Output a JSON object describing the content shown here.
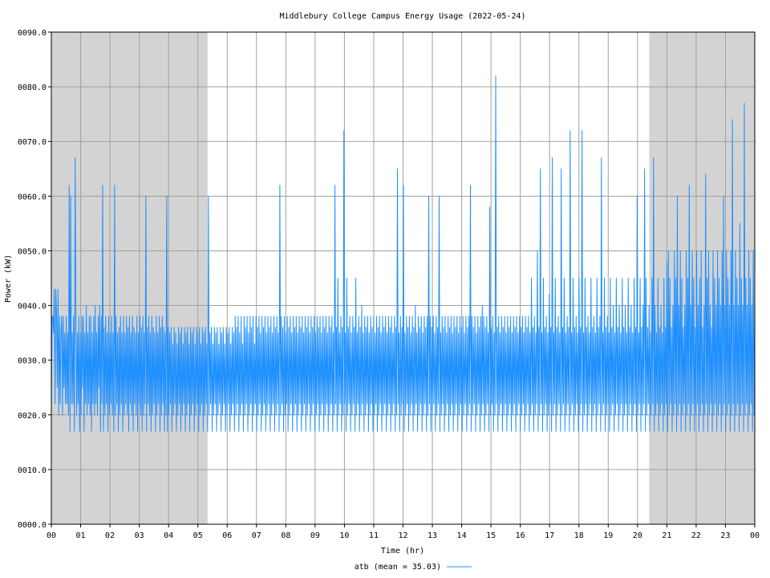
{
  "chart_data": {
    "type": "line",
    "title": "Middlebury College Campus Energy Usage (2022-05-24)",
    "xlabel": "Time (hr)",
    "ylabel": "Power (kW)",
    "xlim": [
      0,
      24
    ],
    "ylim": [
      0,
      90
    ],
    "x_ticks": [
      "00",
      "01",
      "02",
      "03",
      "04",
      "05",
      "06",
      "07",
      "08",
      "09",
      "10",
      "11",
      "12",
      "13",
      "14",
      "15",
      "16",
      "17",
      "18",
      "19",
      "20",
      "21",
      "22",
      "23",
      "00"
    ],
    "y_ticks": [
      "0000.0",
      "0010.0",
      "0020.0",
      "0030.0",
      "0040.0",
      "0050.0",
      "0060.0",
      "0070.0",
      "0080.0",
      "0090.0"
    ],
    "grid": true,
    "legend_position": "bottom-center",
    "shaded_ranges_hr": [
      [
        0,
        5.33
      ],
      [
        20.4,
        24
      ]
    ],
    "shade_color": "#d3d3d3",
    "series": [
      {
        "name": "atb (mean = 35.03)",
        "color": "#1e90ff",
        "sample_interval_min": 1,
        "values": [
          20,
          38,
          38,
          35,
          43,
          22,
          43,
          38,
          25,
          43,
          20,
          38,
          22,
          35,
          38,
          20,
          38,
          25,
          35,
          22,
          38,
          22,
          35,
          20,
          62,
          17,
          60,
          22,
          35,
          22,
          38,
          17,
          67,
          38,
          20,
          35,
          22,
          38,
          17,
          35,
          20,
          38,
          25,
          38,
          17,
          35,
          22,
          40,
          20,
          35,
          22,
          38,
          20,
          38,
          17,
          35,
          22,
          38,
          20,
          40,
          22,
          35,
          20,
          38,
          25,
          40,
          17,
          38,
          22,
          62,
          17,
          36,
          20,
          38,
          22,
          35,
          17,
          38,
          20,
          35,
          22,
          38,
          20,
          35,
          17,
          62,
          20,
          38,
          22,
          35,
          17,
          36,
          20,
          38,
          22,
          35,
          17,
          38,
          20,
          35,
          22,
          38,
          20,
          36,
          17,
          38,
          22,
          35,
          20,
          38,
          17,
          36,
          22,
          35,
          20,
          38,
          17,
          35,
          22,
          38,
          20,
          36,
          17,
          38,
          20,
          35,
          22,
          60,
          17,
          36,
          22,
          38,
          20,
          35,
          17,
          38,
          20,
          36,
          22,
          35,
          17,
          38,
          20,
          35,
          22,
          38,
          17,
          36,
          20,
          38,
          22,
          36,
          17,
          35,
          20,
          60,
          17,
          36,
          20,
          35,
          22,
          36,
          17,
          33,
          20,
          36,
          22,
          35,
          17,
          33,
          20,
          36,
          22,
          35,
          17,
          36,
          20,
          33,
          22,
          36,
          17,
          35,
          20,
          36,
          22,
          33,
          17,
          36,
          20,
          35,
          22,
          36,
          17,
          33,
          20,
          36,
          22,
          35,
          17,
          36,
          20,
          33,
          22,
          36,
          17,
          35,
          20,
          36,
          22,
          33,
          17,
          60,
          20,
          35,
          22,
          36,
          17,
          33,
          20,
          36,
          22,
          35,
          17,
          36,
          20,
          33,
          22,
          36,
          17,
          35,
          20,
          36,
          22,
          33,
          17,
          36,
          20,
          35,
          22,
          36,
          17,
          33,
          20,
          36,
          22,
          35,
          17,
          38,
          20,
          36,
          22,
          38,
          17,
          35,
          20,
          38,
          22,
          33,
          17,
          38,
          20,
          36,
          22,
          38,
          17,
          35,
          20,
          38,
          22,
          36,
          17,
          38,
          20,
          33,
          22,
          38,
          17,
          36,
          20,
          38,
          22,
          35,
          17,
          38,
          20,
          36,
          22,
          38,
          17,
          35,
          20,
          38,
          22,
          36,
          17,
          38,
          20,
          35,
          22,
          38,
          17,
          36,
          20,
          38,
          22,
          35,
          17,
          62,
          20,
          38,
          22,
          36,
          17,
          38,
          20,
          35,
          22,
          38,
          17,
          36,
          20,
          38,
          22,
          35,
          17,
          38,
          20,
          36,
          22,
          38,
          17,
          35,
          20,
          38,
          22,
          36,
          17,
          38,
          20,
          35,
          22,
          38,
          17,
          36,
          20,
          38,
          22,
          35,
          17,
          38,
          20,
          36,
          22,
          38,
          17,
          35,
          20,
          38,
          22,
          36,
          17,
          38,
          20,
          35,
          22,
          38,
          17,
          36,
          20,
          38,
          22,
          35,
          17,
          38,
          20,
          36,
          22,
          38,
          17,
          35,
          20,
          62,
          22,
          36,
          17,
          45,
          20,
          35,
          22,
          38,
          17,
          36,
          20,
          72,
          22,
          35,
          17,
          45,
          20,
          36,
          22,
          38,
          17,
          35,
          20,
          38,
          22,
          36,
          17,
          45,
          20,
          35,
          22,
          38,
          17,
          36,
          20,
          40,
          22,
          35,
          17,
          38,
          20,
          36,
          22,
          38,
          17,
          35,
          20,
          38,
          22,
          36,
          17,
          38,
          20,
          35,
          22,
          38,
          17,
          36,
          20,
          38,
          22,
          35,
          17,
          38,
          20,
          36,
          22,
          38,
          17,
          35,
          20,
          38,
          22,
          36,
          17,
          38,
          20,
          35,
          22,
          38,
          17,
          36,
          20,
          65,
          22,
          35,
          17,
          38,
          20,
          36,
          22,
          62,
          17,
          35,
          20,
          38,
          22,
          36,
          17,
          38,
          20,
          35,
          22,
          38,
          17,
          36,
          20,
          40,
          22,
          35,
          17,
          38,
          20,
          36,
          22,
          38,
          17,
          35,
          20,
          38,
          22,
          36,
          17,
          38,
          20,
          60,
          22,
          38,
          17,
          36,
          20,
          38,
          22,
          35,
          17,
          38,
          20,
          36,
          22,
          60,
          17,
          35,
          20,
          38,
          22,
          36,
          17,
          38,
          20,
          35,
          22,
          38,
          17,
          36,
          20,
          38,
          22,
          35,
          17,
          38,
          20,
          36,
          22,
          38,
          17,
          35,
          20,
          38,
          22,
          36,
          17,
          38,
          20,
          35,
          22,
          38,
          17,
          36,
          20,
          38,
          22,
          62,
          17,
          38,
          20,
          36,
          22,
          38,
          17,
          35,
          20,
          38,
          22,
          36,
          17,
          38,
          20,
          40,
          22,
          38,
          17,
          36,
          20,
          38,
          22,
          35,
          17,
          58,
          20,
          36,
          22,
          38,
          17,
          35,
          20,
          82,
          22,
          36,
          17,
          38,
          20,
          35,
          22,
          38,
          17,
          36,
          20,
          38,
          22,
          35,
          17,
          38,
          20,
          36,
          22,
          38,
          17,
          35,
          20,
          38,
          22,
          36,
          17,
          38,
          20,
          35,
          22,
          38,
          17,
          36,
          20,
          38,
          22,
          35,
          17,
          38,
          20,
          36,
          22,
          38,
          17,
          35,
          20,
          45,
          22,
          36,
          17,
          38,
          20,
          35,
          22,
          50,
          17,
          36,
          20,
          65,
          22,
          35,
          17,
          45,
          20,
          36,
          22,
          38,
          17,
          35,
          20,
          42,
          22,
          36,
          17,
          67,
          20,
          35,
          22,
          45,
          17,
          36,
          20,
          38,
          22,
          35,
          17,
          65,
          20,
          36,
          22,
          45,
          17,
          35,
          20,
          38,
          22,
          36,
          17,
          72,
          20,
          35,
          22,
          45,
          17,
          36,
          20,
          38,
          22,
          35,
          17,
          45,
          20,
          36,
          22,
          72,
          17,
          35,
          20,
          45,
          22,
          36,
          17,
          38,
          20,
          35,
          22,
          45,
          17,
          36,
          20,
          38,
          22,
          35,
          17,
          45,
          20,
          36,
          22,
          38,
          17,
          67,
          20,
          35,
          22,
          45,
          17,
          36,
          20,
          38,
          22,
          35,
          17,
          45,
          20,
          36,
          22,
          40,
          17,
          35,
          20,
          45,
          22,
          36,
          17,
          40,
          20,
          35,
          22,
          45,
          17,
          36,
          20,
          40,
          22,
          35,
          17,
          45,
          20,
          36,
          22,
          40,
          17,
          35,
          20,
          45,
          22,
          36,
          17,
          60,
          20,
          35,
          22,
          45,
          17,
          36,
          20,
          40,
          22,
          65,
          17,
          45,
          20,
          36,
          22,
          40,
          17,
          35,
          20,
          45,
          22,
          67,
          17,
          40,
          20,
          35,
          22,
          45,
          17,
          36,
          20,
          40,
          22,
          35,
          17,
          45,
          20,
          36,
          22,
          48,
          17,
          50,
          20,
          45,
          22,
          36,
          17,
          40,
          20,
          50,
          22,
          45,
          17,
          60,
          20,
          40,
          22,
          50,
          17,
          45,
          20,
          36,
          22,
          40,
          17,
          50,
          20,
          45,
          22,
          62,
          17,
          40,
          20,
          50,
          22,
          45,
          17,
          36,
          20,
          50,
          22,
          40,
          17,
          45,
          20,
          50,
          22,
          36,
          17,
          40,
          20,
          64,
          22,
          45,
          17,
          50,
          20,
          40,
          22,
          36,
          17,
          50,
          20,
          45,
          22,
          40,
          17,
          50,
          20,
          45,
          22,
          40,
          17,
          50,
          20,
          60,
          22,
          40,
          17,
          50,
          20,
          45,
          22,
          40,
          17,
          50,
          20,
          74,
          22,
          40,
          17,
          50,
          20,
          45,
          22,
          40,
          17,
          55,
          20,
          45,
          22,
          40,
          17,
          77,
          20,
          45,
          22,
          40,
          17,
          50,
          20,
          45,
          22,
          40,
          17,
          50,
          20,
          40
        ]
      }
    ],
    "legend": [
      {
        "label": "atb (mean = 35.03)",
        "color": "#1e90ff"
      }
    ]
  }
}
